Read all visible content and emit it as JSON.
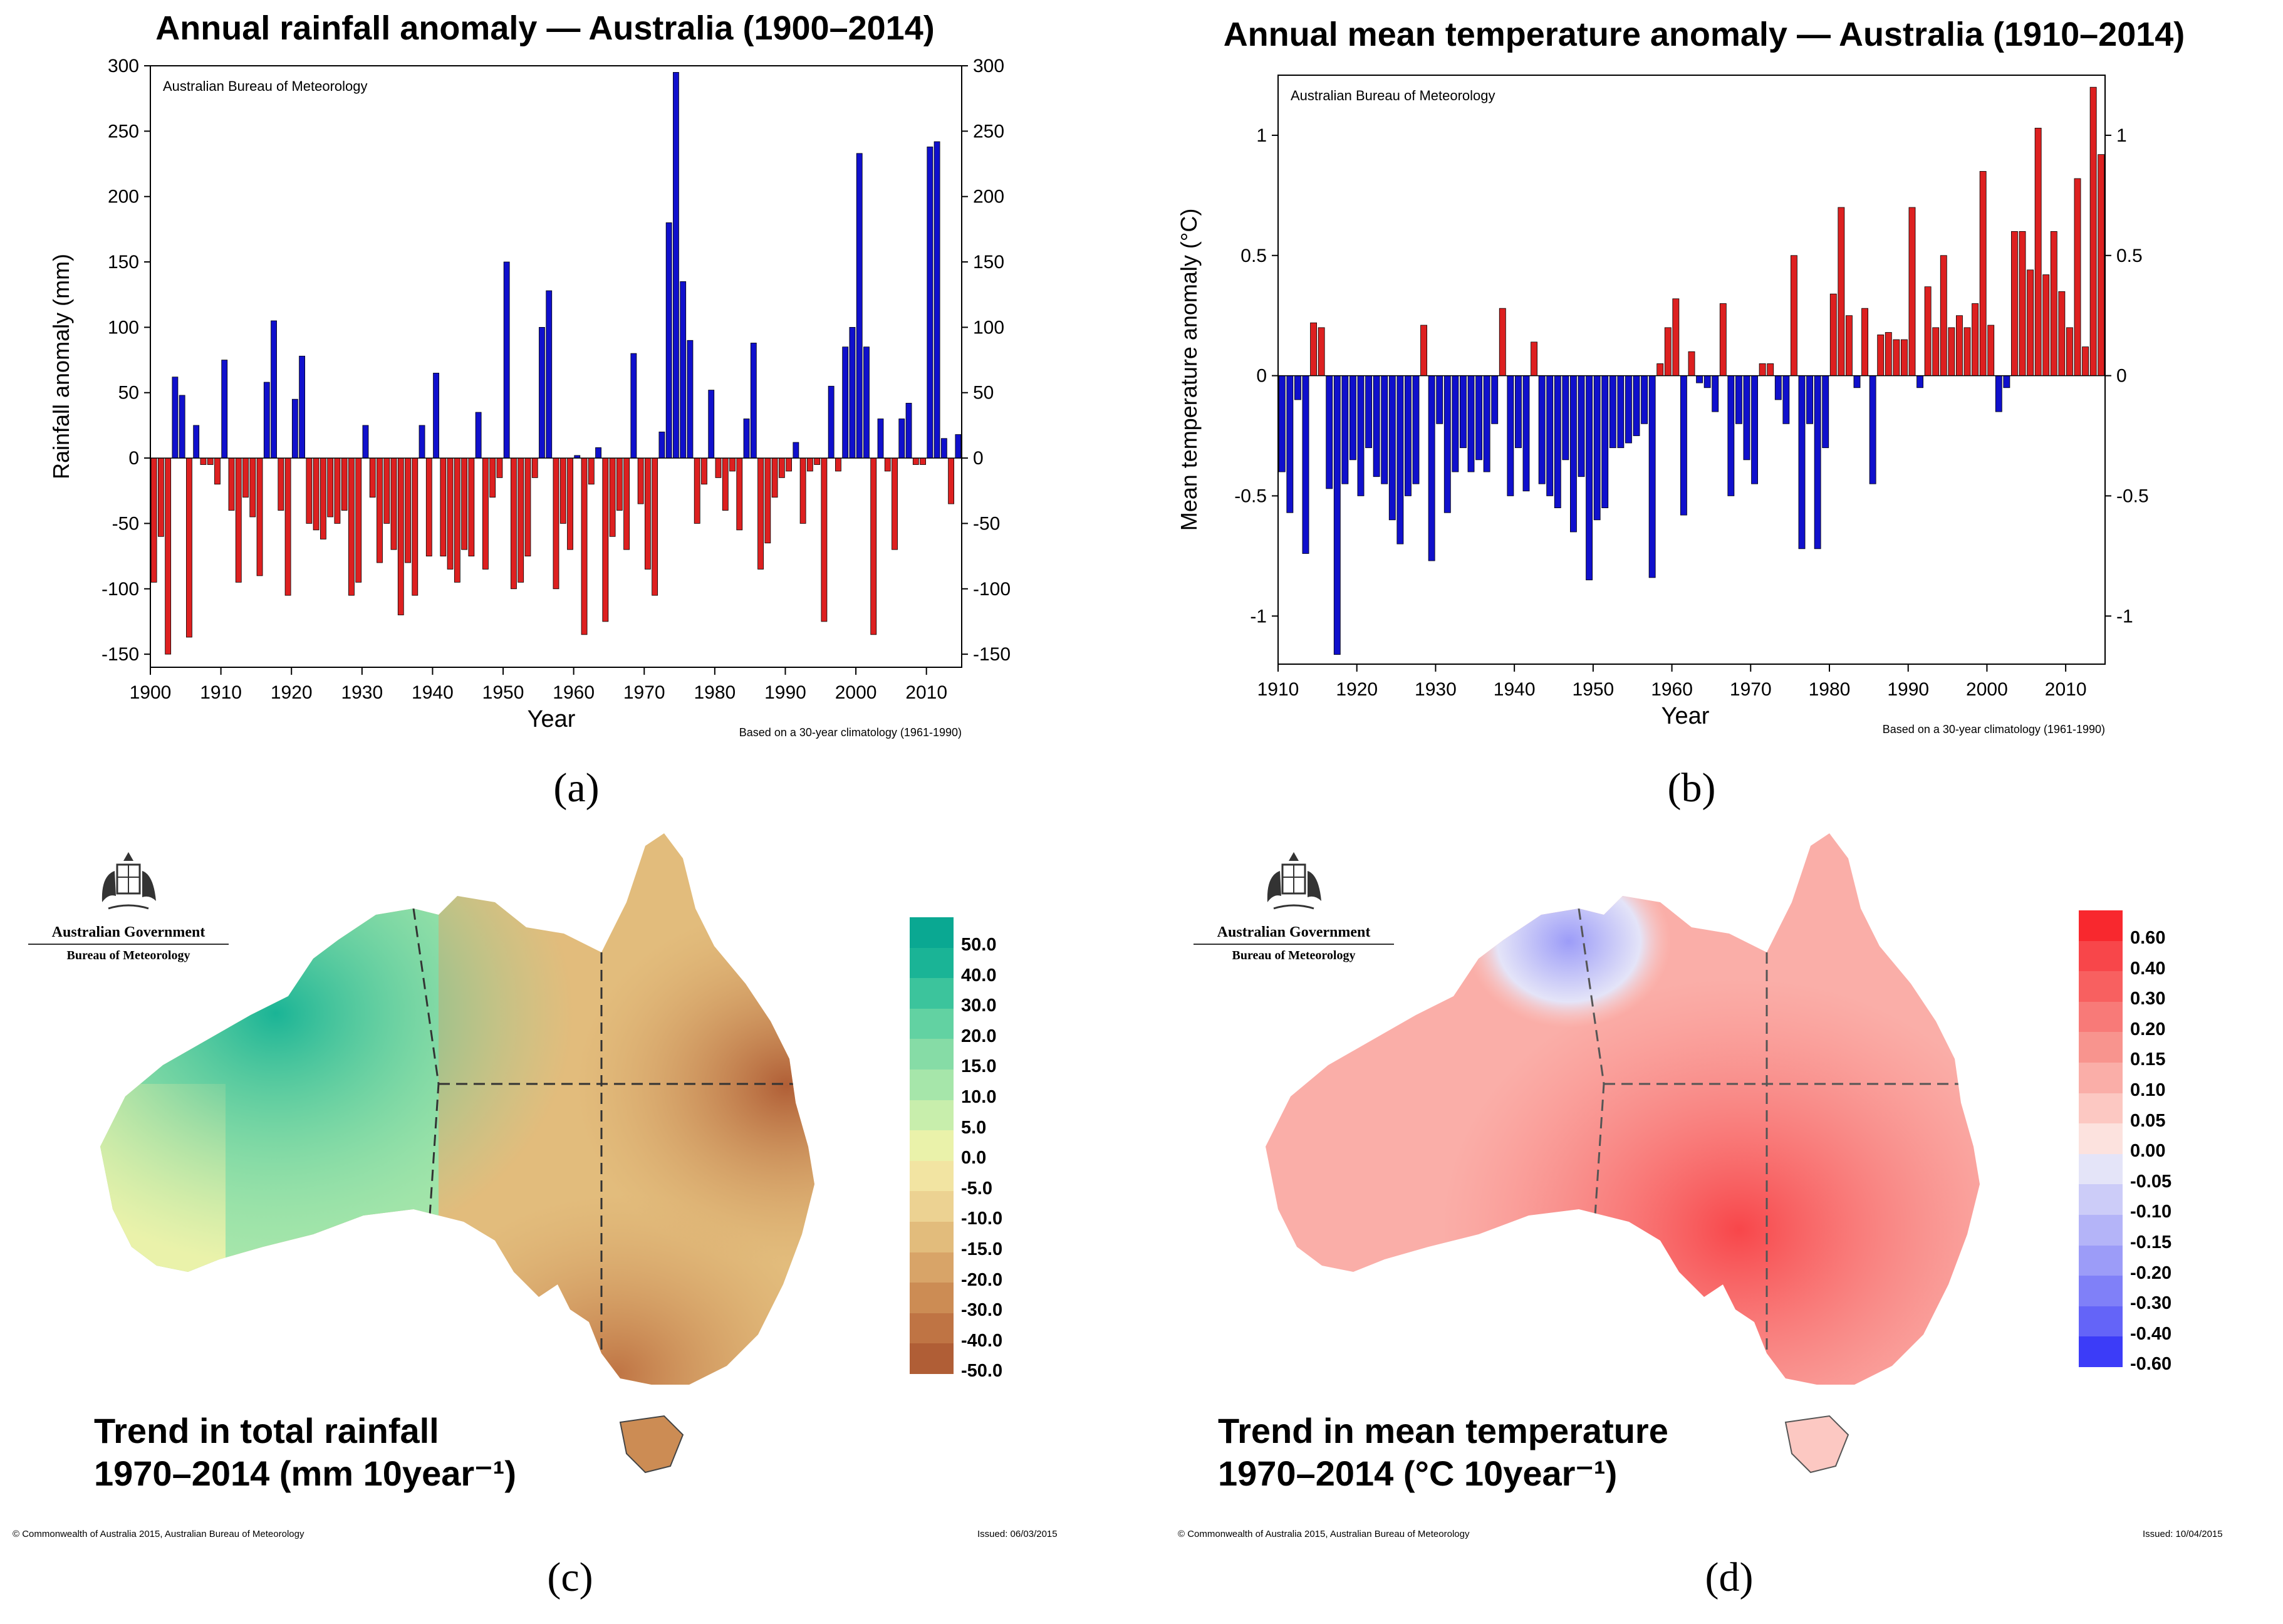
{
  "sublabels": {
    "a": "(a)",
    "b": "(b)",
    "c": "(c)",
    "d": "(d)"
  },
  "chart_data": [
    {
      "type": "bar",
      "title": "Annual rainfall anomaly — Australia (1900–2014)",
      "source": "Australian Bureau of Meteorology",
      "footnote": "Based on a 30-year climatology (1961-1990)",
      "xlabel": "Year",
      "ylabel": "Rainfall anomaly (mm)",
      "xlim": [
        1900,
        2015
      ],
      "ylim": [
        -160,
        300
      ],
      "x_ticks": [
        1900,
        1910,
        1920,
        1930,
        1940,
        1950,
        1960,
        1970,
        1980,
        1990,
        2000,
        2010
      ],
      "y_ticks": [
        -150,
        -100,
        -50,
        0,
        50,
        100,
        150,
        200,
        250,
        300
      ],
      "positive_color": "#1010cc",
      "negative_color": "#dd2020",
      "x": [
        1900,
        1901,
        1902,
        1903,
        1904,
        1905,
        1906,
        1907,
        1908,
        1909,
        1910,
        1911,
        1912,
        1913,
        1914,
        1915,
        1916,
        1917,
        1918,
        1919,
        1920,
        1921,
        1922,
        1923,
        1924,
        1925,
        1926,
        1927,
        1928,
        1929,
        1930,
        1931,
        1932,
        1933,
        1934,
        1935,
        1936,
        1937,
        1938,
        1939,
        1940,
        1941,
        1942,
        1943,
        1944,
        1945,
        1946,
        1947,
        1948,
        1949,
        1950,
        1951,
        1952,
        1953,
        1954,
        1955,
        1956,
        1957,
        1958,
        1959,
        1960,
        1961,
        1962,
        1963,
        1964,
        1965,
        1966,
        1967,
        1968,
        1969,
        1970,
        1971,
        1972,
        1973,
        1974,
        1975,
        1976,
        1977,
        1978,
        1979,
        1980,
        1981,
        1982,
        1983,
        1984,
        1985,
        1986,
        1987,
        1988,
        1989,
        1990,
        1991,
        1992,
        1993,
        1994,
        1995,
        1996,
        1997,
        1998,
        1999,
        2000,
        2001,
        2002,
        2003,
        2004,
        2005,
        2006,
        2007,
        2008,
        2009,
        2010,
        2011,
        2012,
        2013,
        2014
      ],
      "values": [
        -95,
        -60,
        -150,
        62,
        48,
        -137,
        25,
        -5,
        -5,
        -20,
        75,
        -40,
        -95,
        -30,
        -45,
        -90,
        58,
        105,
        -40,
        -105,
        45,
        78,
        -50,
        -55,
        -62,
        -45,
        -50,
        -40,
        -105,
        -95,
        25,
        -30,
        -80,
        -50,
        -70,
        -120,
        -80,
        -105,
        25,
        -75,
        65,
        -75,
        -85,
        -95,
        -70,
        -75,
        35,
        -85,
        -30,
        -15,
        150,
        -100,
        -95,
        -75,
        -15,
        100,
        128,
        -100,
        -50,
        -70,
        2,
        -135,
        -20,
        8,
        -125,
        -60,
        -40,
        -70,
        80,
        -35,
        -85,
        -105,
        20,
        180,
        295,
        135,
        90,
        -50,
        -20,
        52,
        -15,
        -40,
        -10,
        -55,
        30,
        88,
        -85,
        -65,
        -30,
        -15,
        -10,
        12,
        -50,
        -10,
        -5,
        -125,
        55,
        -10,
        85,
        100,
        233,
        85,
        -135,
        30,
        -10,
        -70,
        30,
        42,
        -5,
        -5,
        238,
        242,
        15,
        -35,
        18
      ]
    },
    {
      "type": "bar",
      "title": "Annual mean temperature anomaly — Australia (1910–2014)",
      "source": "Australian Bureau of Meteorology",
      "footnote": "Based on a 30-year climatology (1961-1990)",
      "xlabel": "Year",
      "ylabel": "Mean temperature anomaly (°C)",
      "xlim": [
        1910,
        2015
      ],
      "ylim": [
        -1.2,
        1.25
      ],
      "x_ticks": [
        1910,
        1920,
        1930,
        1940,
        1950,
        1960,
        1970,
        1980,
        1990,
        2000,
        2010
      ],
      "y_ticks": [
        -1,
        -0.5,
        0,
        0.5,
        1
      ],
      "positive_color": "#dd2020",
      "negative_color": "#1010cc",
      "x": [
        1910,
        1911,
        1912,
        1913,
        1914,
        1915,
        1916,
        1917,
        1918,
        1919,
        1920,
        1921,
        1922,
        1923,
        1924,
        1925,
        1926,
        1927,
        1928,
        1929,
        1930,
        1931,
        1932,
        1933,
        1934,
        1935,
        1936,
        1937,
        1938,
        1939,
        1940,
        1941,
        1942,
        1943,
        1944,
        1945,
        1946,
        1947,
        1948,
        1949,
        1950,
        1951,
        1952,
        1953,
        1954,
        1955,
        1956,
        1957,
        1958,
        1959,
        1960,
        1961,
        1962,
        1963,
        1964,
        1965,
        1966,
        1967,
        1968,
        1969,
        1970,
        1971,
        1972,
        1973,
        1974,
        1975,
        1976,
        1977,
        1978,
        1979,
        1980,
        1981,
        1982,
        1983,
        1984,
        1985,
        1986,
        1987,
        1988,
        1989,
        1990,
        1991,
        1992,
        1993,
        1994,
        1995,
        1996,
        1997,
        1998,
        1999,
        2000,
        2001,
        2002,
        2003,
        2004,
        2005,
        2006,
        2007,
        2008,
        2009,
        2010,
        2011,
        2012,
        2013,
        2014
      ],
      "values": [
        -0.4,
        -0.57,
        -0.1,
        -0.74,
        0.22,
        0.2,
        -0.47,
        -1.16,
        -0.45,
        -0.35,
        -0.5,
        -0.3,
        -0.42,
        -0.45,
        -0.6,
        -0.7,
        -0.5,
        -0.45,
        0.21,
        -0.77,
        -0.2,
        -0.57,
        -0.4,
        -0.3,
        -0.4,
        -0.35,
        -0.4,
        -0.2,
        0.28,
        -0.5,
        -0.3,
        -0.48,
        0.14,
        -0.45,
        -0.5,
        -0.55,
        -0.35,
        -0.65,
        -0.42,
        -0.85,
        -0.6,
        -0.55,
        -0.3,
        -0.3,
        -0.28,
        -0.25,
        -0.2,
        -0.84,
        0.05,
        0.2,
        0.32,
        -0.58,
        0.1,
        -0.03,
        -0.05,
        -0.15,
        0.3,
        -0.5,
        -0.2,
        -0.35,
        -0.45,
        0.05,
        0.05,
        -0.1,
        -0.2,
        0.5,
        -0.72,
        -0.2,
        -0.72,
        -0.3,
        0.34,
        0.7,
        0.25,
        -0.05,
        0.28,
        -0.45,
        0.17,
        0.18,
        0.15,
        0.15,
        0.7,
        -0.05,
        0.37,
        0.2,
        0.5,
        0.2,
        0.25,
        0.2,
        0.3,
        0.85,
        0.21,
        -0.15,
        -0.05,
        0.6,
        0.6,
        0.44,
        1.03,
        0.42,
        0.6,
        0.35,
        0.2,
        0.82,
        0.12,
        1.2,
        0.92
      ]
    },
    {
      "type": "heatmap",
      "map": "Australia",
      "caption_line1": "Trend in total rainfall",
      "caption_line2": "1970–2014 (mm 10year⁻¹)",
      "legend_labels": [
        "50.0",
        "40.0",
        "30.0",
        "20.0",
        "15.0",
        "10.0",
        "5.0",
        "0.0",
        "-5.0",
        "-10.0",
        "-15.0",
        "-20.0",
        "-30.0",
        "-40.0",
        "-50.0"
      ],
      "legend_colors": [
        "#0aa892",
        "#1ab496",
        "#3cc49c",
        "#62d2a2",
        "#86dca6",
        "#a6e6aa",
        "#c8eeac",
        "#eaf2aa",
        "#f2e4a2",
        "#ecd292",
        "#e2bc7c",
        "#d8a468",
        "#cc8c54",
        "#bf7444",
        "#b05e36"
      ]
    },
    {
      "type": "heatmap",
      "map": "Australia",
      "caption_line1": "Trend in mean temperature",
      "caption_line2": "1970–2014 (°C 10year⁻¹)",
      "legend_labels": [
        "0.60",
        "0.40",
        "0.30",
        "0.20",
        "0.15",
        "0.10",
        "0.05",
        "0.00",
        "-0.05",
        "-0.10",
        "-0.15",
        "-0.20",
        "-0.30",
        "-0.40",
        "-0.60"
      ],
      "legend_colors": [
        "#f8282e",
        "#f8464a",
        "#f86060",
        "#f87a78",
        "#f8948e",
        "#faaea8",
        "#fcc8c2",
        "#fce2de",
        "#e4e4f8",
        "#ccccf8",
        "#b4b4f8",
        "#9c9cf8",
        "#8080f8",
        "#6464f8",
        "#3c3cf8"
      ]
    }
  ],
  "maps": {
    "c": {
      "copyright": "© Commonwealth of Australia 2015, Australian Bureau of Meteorology",
      "issued": "Issued: 06/03/2015"
    },
    "d": {
      "copyright": "© Commonwealth of Australia 2015, Australian Bureau of Meteorology",
      "issued": "Issued: 10/04/2015"
    }
  },
  "logo": {
    "line1": "Australian Government",
    "line2": "Bureau of Meteorology"
  }
}
